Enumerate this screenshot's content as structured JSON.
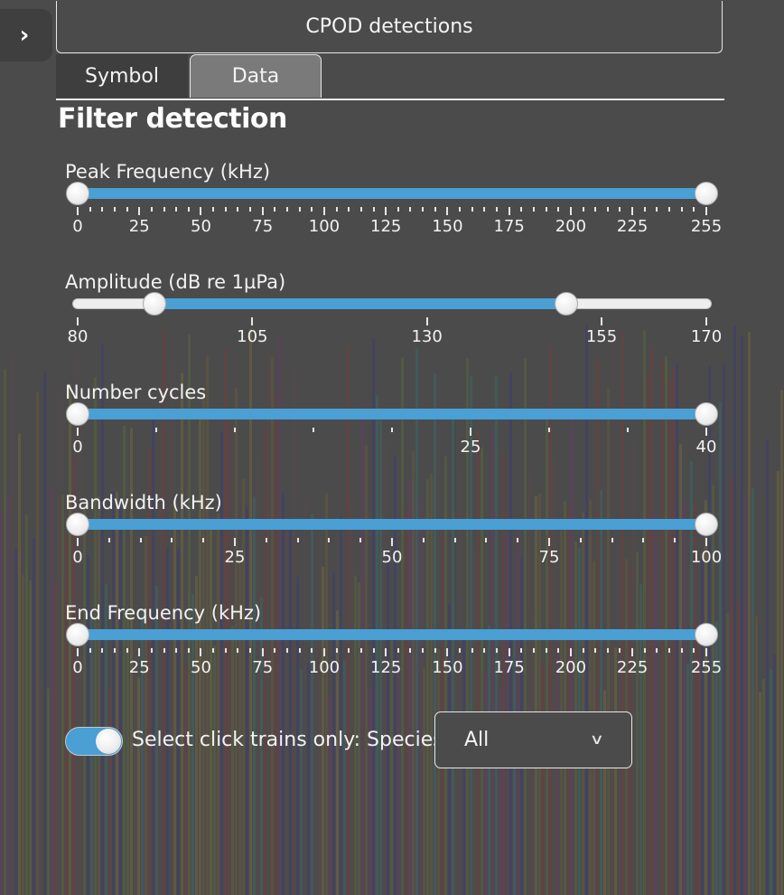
{
  "colors": {
    "accent": "#4a9fd4",
    "background": "#4b4b4b"
  },
  "sidebar_toggle": {
    "icon": "chevron-right-icon",
    "glyph": "›"
  },
  "panel": {
    "title": "CPOD detections"
  },
  "tabs": [
    {
      "label": "Symbol",
      "selected": false
    },
    {
      "label": "Data",
      "selected": true
    }
  ],
  "section_title": "Filter detection",
  "sliders": [
    {
      "id": "peak-frequency",
      "label": "Peak Frequency (kHz)",
      "min": 0,
      "max": 255,
      "low": 0,
      "high": 255,
      "major_ticks": [
        0,
        25,
        50,
        75,
        100,
        125,
        150,
        175,
        200,
        225,
        255
      ],
      "tick_labels": [
        "0",
        "25",
        "50",
        "75",
        "100",
        "125",
        "150",
        "175",
        "200",
        "225",
        "255"
      ]
    },
    {
      "id": "amplitude",
      "label": "Amplitude (dB re 1µPa)",
      "min": 80,
      "max": 170,
      "low": 91,
      "high": 150,
      "major_ticks": [
        80,
        105,
        130,
        155,
        170
      ],
      "tick_labels": [
        "80",
        "105",
        "130",
        "155",
        "170"
      ]
    },
    {
      "id": "number-cycles",
      "label": "Number cycles",
      "min": 0,
      "max": 40,
      "low": 0,
      "high": 40,
      "major_ticks": [
        0,
        25,
        40
      ],
      "tick_labels": [
        "0",
        "25",
        "40"
      ]
    },
    {
      "id": "bandwidth",
      "label": "Bandwidth (kHz)",
      "min": 0,
      "max": 100,
      "low": 0,
      "high": 100,
      "major_ticks": [
        0,
        25,
        50,
        75,
        100
      ],
      "tick_labels": [
        "0",
        "25",
        "50",
        "75",
        "100"
      ]
    },
    {
      "id": "end-frequency",
      "label": "End Frequency (kHz)",
      "min": 0,
      "max": 255,
      "low": 0,
      "high": 255,
      "major_ticks": [
        0,
        25,
        50,
        75,
        100,
        125,
        150,
        175,
        200,
        225,
        255
      ],
      "tick_labels": [
        "0",
        "25",
        "50",
        "75",
        "100",
        "125",
        "150",
        "175",
        "200",
        "225",
        "255"
      ]
    }
  ],
  "click_trains": {
    "toggle_on": true,
    "label": "Select click trains only: Species",
    "species_selected": "All",
    "dropdown_icon": "chevron-down-icon"
  }
}
